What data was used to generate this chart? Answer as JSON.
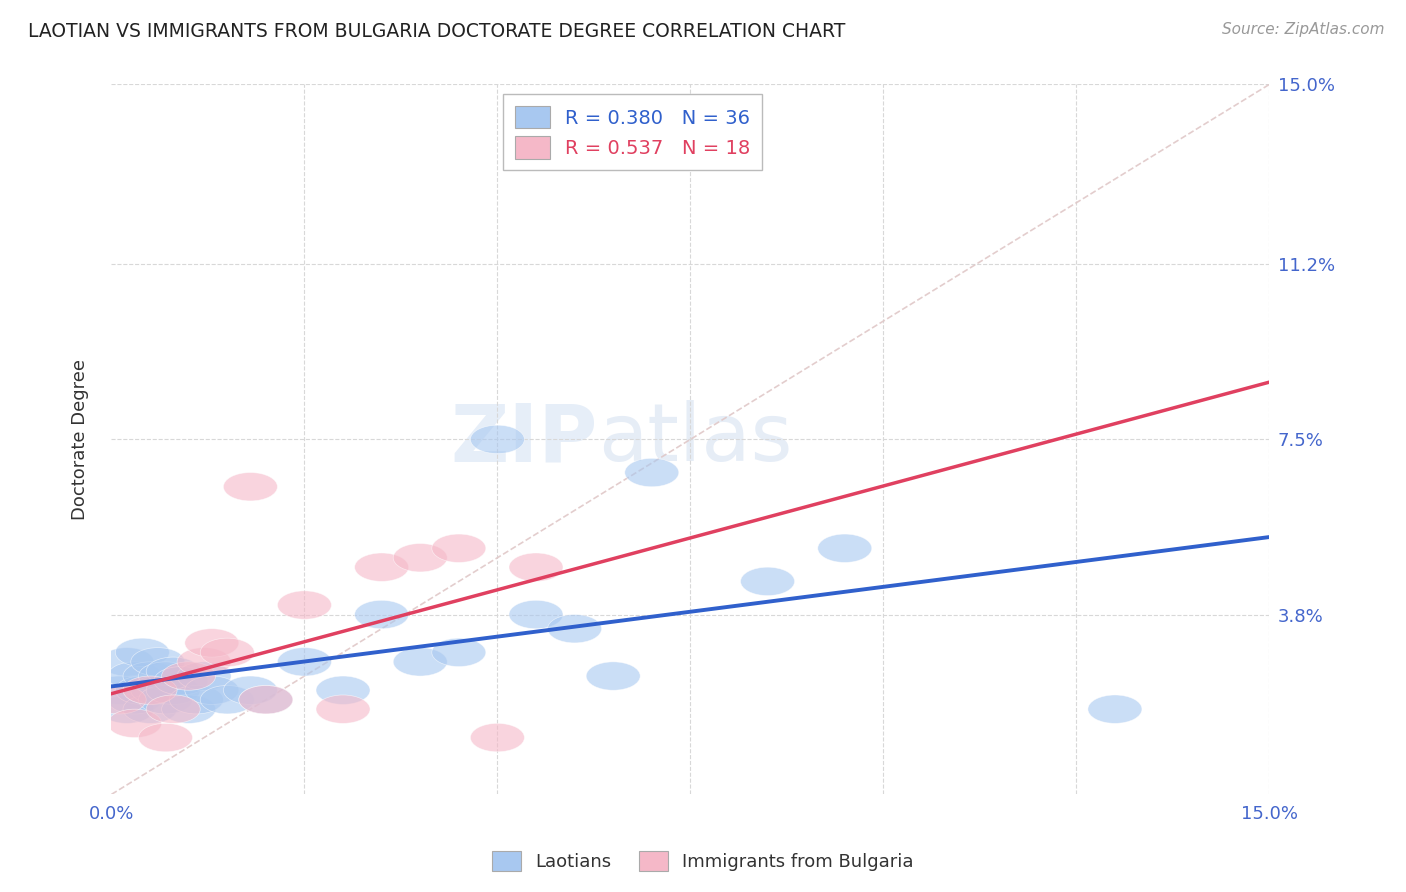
{
  "title": "LAOTIAN VS IMMIGRANTS FROM BULGARIA DOCTORATE DEGREE CORRELATION CHART",
  "source": "Source: ZipAtlas.com",
  "ylabel": "Doctorate Degree",
  "xlabel": "",
  "xlim": [
    0.0,
    0.15
  ],
  "ylim": [
    0.0,
    0.15
  ],
  "background_color": "#ffffff",
  "grid_color": "#d8d8d8",
  "blue_scatter_color": "#a8c8f0",
  "pink_scatter_color": "#f5b8c8",
  "blue_line_color": "#3060cc",
  "pink_line_color": "#e04060",
  "dashed_line_color": "#e0c8c8",
  "watermark_color": "#dce8f5",
  "legend_R_blue": "0.380",
  "legend_N_blue": "36",
  "legend_R_pink": "0.537",
  "legend_N_pink": "18",
  "laotian_x": [
    0.001,
    0.002,
    0.002,
    0.003,
    0.003,
    0.004,
    0.004,
    0.005,
    0.005,
    0.006,
    0.006,
    0.007,
    0.007,
    0.008,
    0.008,
    0.009,
    0.01,
    0.011,
    0.012,
    0.013,
    0.015,
    0.018,
    0.02,
    0.025,
    0.03,
    0.035,
    0.04,
    0.045,
    0.05,
    0.055,
    0.06,
    0.065,
    0.07,
    0.085,
    0.095,
    0.13
  ],
  "laotian_y": [
    0.022,
    0.028,
    0.018,
    0.025,
    0.02,
    0.03,
    0.022,
    0.025,
    0.018,
    0.028,
    0.022,
    0.025,
    0.02,
    0.026,
    0.022,
    0.024,
    0.018,
    0.02,
    0.025,
    0.022,
    0.02,
    0.022,
    0.02,
    0.028,
    0.022,
    0.038,
    0.028,
    0.03,
    0.075,
    0.038,
    0.035,
    0.025,
    0.068,
    0.045,
    0.052,
    0.018
  ],
  "bulgaria_x": [
    0.001,
    0.003,
    0.005,
    0.007,
    0.008,
    0.01,
    0.012,
    0.013,
    0.015,
    0.018,
    0.02,
    0.025,
    0.03,
    0.035,
    0.04,
    0.045,
    0.05,
    0.055
  ],
  "bulgaria_y": [
    0.02,
    0.015,
    0.022,
    0.012,
    0.018,
    0.025,
    0.028,
    0.032,
    0.03,
    0.065,
    0.02,
    0.04,
    0.018,
    0.048,
    0.05,
    0.052,
    0.012,
    0.048
  ]
}
